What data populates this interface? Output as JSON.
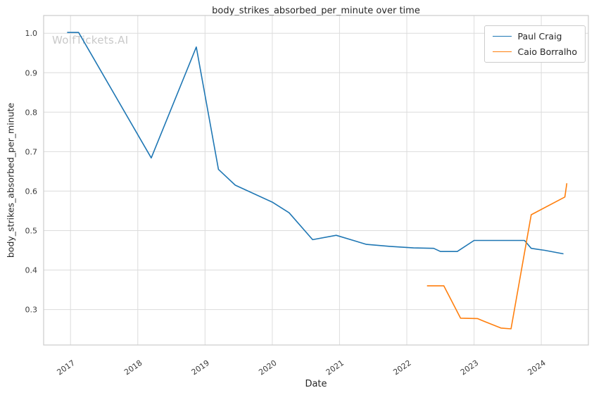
{
  "watermark": {
    "text": "WolfTickets.AI"
  },
  "chart_data": {
    "type": "line",
    "title": "body_strikes_absorbed_per_minute over time",
    "xlabel": "Date",
    "ylabel": "body_strikes_absorbed_per_minute",
    "grid": true,
    "legend_position": "top-right",
    "xlim": [
      2016.6,
      2024.7
    ],
    "ylim": [
      0.21,
      1.045
    ],
    "xticks": [
      2017,
      2018,
      2019,
      2020,
      2021,
      2022,
      2023,
      2024
    ],
    "xtick_labels": [
      "2017",
      "2018",
      "2019",
      "2020",
      "2021",
      "2022",
      "2023",
      "2024"
    ],
    "yticks": [
      0.3,
      0.4,
      0.5,
      0.6,
      0.7,
      0.8,
      0.9,
      1.0
    ],
    "ytick_labels": [
      "0.3",
      "0.4",
      "0.5",
      "0.6",
      "0.7",
      "0.8",
      "0.9",
      "1.0"
    ],
    "series": [
      {
        "name": "Paul Craig",
        "color": "#1f77b4",
        "points": [
          [
            2016.95,
            1.002
          ],
          [
            2017.12,
            1.002
          ],
          [
            2018.2,
            0.684
          ],
          [
            2018.87,
            0.965
          ],
          [
            2019.2,
            0.655
          ],
          [
            2019.45,
            0.615
          ],
          [
            2019.63,
            0.601
          ],
          [
            2020.0,
            0.572
          ],
          [
            2020.25,
            0.545
          ],
          [
            2020.6,
            0.477
          ],
          [
            2020.95,
            0.488
          ],
          [
            2021.4,
            0.465
          ],
          [
            2021.75,
            0.46
          ],
          [
            2022.1,
            0.456
          ],
          [
            2022.4,
            0.455
          ],
          [
            2022.5,
            0.447
          ],
          [
            2022.75,
            0.447
          ],
          [
            2023.0,
            0.475
          ],
          [
            2023.75,
            0.475
          ],
          [
            2023.85,
            0.455
          ],
          [
            2024.05,
            0.45
          ],
          [
            2024.33,
            0.441
          ]
        ]
      },
      {
        "name": "Caio Borralho",
        "color": "#ff7f0e",
        "points": [
          [
            2022.3,
            0.36
          ],
          [
            2022.55,
            0.36
          ],
          [
            2022.8,
            0.278
          ],
          [
            2023.05,
            0.277
          ],
          [
            2023.15,
            0.27
          ],
          [
            2023.4,
            0.253
          ],
          [
            2023.55,
            0.251
          ],
          [
            2023.85,
            0.54
          ],
          [
            2024.35,
            0.585
          ],
          [
            2024.38,
            0.62
          ]
        ]
      }
    ]
  }
}
